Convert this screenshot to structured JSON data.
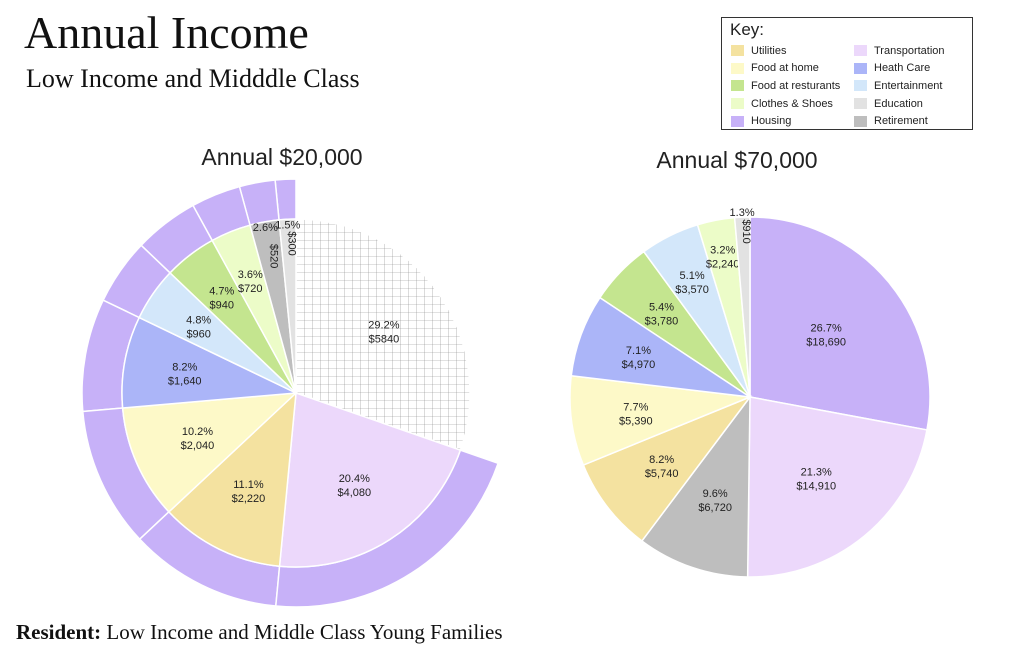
{
  "header": {
    "title": "Annual Income",
    "subtitle": "Low Income and Midddle Class"
  },
  "footer": {
    "label": "Resident:",
    "text": " Low Income and Middle Class Young Families"
  },
  "legend": {
    "title": "Key:",
    "left": [
      {
        "label": "Utilities",
        "color": "#f4e2a0"
      },
      {
        "label": "Food at home",
        "color": "#fdf9c8"
      },
      {
        "label": "Food at resturants",
        "color": "#c4e58f"
      },
      {
        "label": "Clothes & Shoes",
        "color": "#ecfcc8"
      },
      {
        "label": "Housing",
        "color": "#c7b1f8"
      }
    ],
    "right": [
      {
        "label": "Transportation",
        "color": "#ecd8fb"
      },
      {
        "label": "Heath Care",
        "color": "#abb5f8"
      },
      {
        "label": "Entertainment",
        "color": "#d3e7fa"
      },
      {
        "label": "Education",
        "color": "#e2e2e2"
      },
      {
        "label": "Retirement",
        "color": "#bebebe"
      }
    ]
  },
  "chart_data": [
    {
      "type": "pie",
      "title": "Annual $20,000",
      "total": 20000,
      "slices": [
        {
          "category": "Unallocated",
          "percent": 29.2,
          "amount": 5840,
          "pct_label": "29.2%",
          "amt_label": "$5840",
          "color": "#ffffff",
          "pattern": "grid"
        },
        {
          "category": "Transportation",
          "percent": 20.4,
          "amount": 4080,
          "pct_label": "20.4%",
          "amt_label": "$4,080",
          "color": "#ecd8fb"
        },
        {
          "category": "Utilities",
          "percent": 11.1,
          "amount": 2220,
          "pct_label": "11.1%",
          "amt_label": "$2,220",
          "color": "#f4e2a0"
        },
        {
          "category": "Food at home",
          "percent": 10.2,
          "amount": 2040,
          "pct_label": "10.2%",
          "amt_label": "$2,040",
          "color": "#fdf9c8"
        },
        {
          "category": "Heath Care",
          "percent": 8.2,
          "amount": 1640,
          "pct_label": "8.2%",
          "amt_label": "$1,640",
          "color": "#abb5f8"
        },
        {
          "category": "Entertainment",
          "percent": 4.8,
          "amount": 960,
          "pct_label": "4.8%",
          "amt_label": "$960",
          "color": "#d3e7fa"
        },
        {
          "category": "Food at resturants",
          "percent": 4.7,
          "amount": 940,
          "pct_label": "4.7%",
          "amt_label": "$940",
          "color": "#c4e58f"
        },
        {
          "category": "Clothes & Shoes",
          "percent": 3.6,
          "amount": 720,
          "pct_label": "3.6%",
          "amt_label": "$720",
          "color": "#ecfcc8"
        },
        {
          "category": "Retirement",
          "percent": 2.6,
          "amount": 520,
          "pct_label": "2.6%",
          "amt_label": "$520",
          "color": "#bebebe"
        },
        {
          "category": "Education",
          "percent": 1.5,
          "amount": 300,
          "pct_label": "1.5%",
          "amt_label": "$300",
          "color": "#e2e2e2"
        }
      ],
      "outer_ring": {
        "category": "Housing",
        "color": "#c7b1f8"
      }
    },
    {
      "type": "pie",
      "title": "Annual $70,000",
      "total": 70000,
      "slices": [
        {
          "category": "Housing",
          "percent": 26.7,
          "amount": 18690,
          "pct_label": "26.7%",
          "amt_label": "$18,690",
          "color": "#c7b1f8"
        },
        {
          "category": "Transportation",
          "percent": 21.3,
          "amount": 14910,
          "pct_label": "21.3%",
          "amt_label": "$14,910",
          "color": "#ecd8fb"
        },
        {
          "category": "Retirement",
          "percent": 9.6,
          "amount": 6720,
          "pct_label": "9.6%",
          "amt_label": "$6,720",
          "color": "#bebebe"
        },
        {
          "category": "Utilities",
          "percent": 8.2,
          "amount": 5740,
          "pct_label": "8.2%",
          "amt_label": "$5,740",
          "color": "#f4e2a0"
        },
        {
          "category": "Food at home",
          "percent": 7.7,
          "amount": 5390,
          "pct_label": "7.7%",
          "amt_label": "$5,390",
          "color": "#fdf9c8"
        },
        {
          "category": "Heath Care",
          "percent": 7.1,
          "amount": 4970,
          "pct_label": "7.1%",
          "amt_label": "$4,970",
          "color": "#abb5f8"
        },
        {
          "category": "Food at resturants",
          "percent": 5.4,
          "amount": 3780,
          "pct_label": "5.4%",
          "amt_label": "$3,780",
          "color": "#c4e58f"
        },
        {
          "category": "Entertainment",
          "percent": 5.1,
          "amount": 3570,
          "pct_label": "5.1%",
          "amt_label": "$3,570",
          "color": "#d3e7fa"
        },
        {
          "category": "Clothes & Shoes",
          "percent": 3.2,
          "amount": 2240,
          "pct_label": "3.2%",
          "amt_label": "$2,240",
          "color": "#ecfcc8"
        },
        {
          "category": "Education",
          "percent": 1.3,
          "amount": 910,
          "pct_label": "1.3%",
          "amt_label": "$910",
          "color": "#e2e2e2"
        }
      ]
    }
  ]
}
